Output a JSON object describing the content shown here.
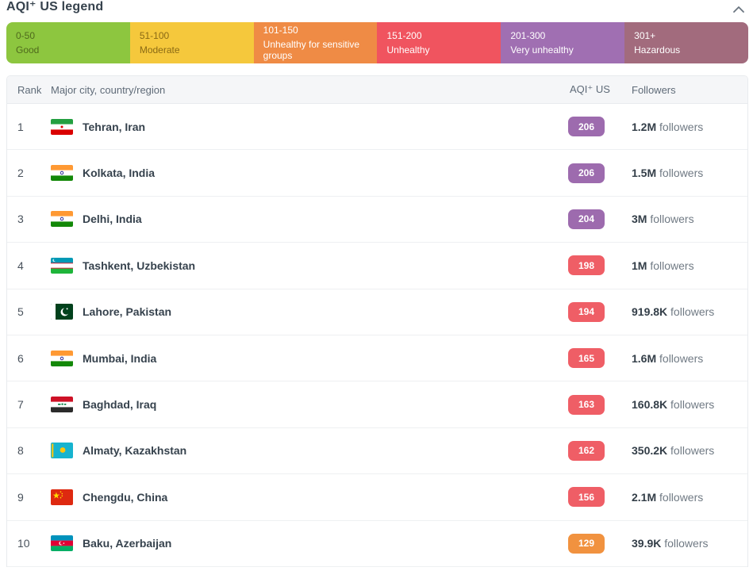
{
  "legend": {
    "title": "AQI⁺ US legend",
    "collapse_icon": "chevron-up",
    "collapse_icon_color": "#6a7580",
    "segments": [
      {
        "range": "0-50",
        "label": "Good",
        "bg": "#8dc63f",
        "fg": "#4f6a1d"
      },
      {
        "range": "51-100",
        "label": "Moderate",
        "bg": "#f5c83c",
        "fg": "#8a6a15"
      },
      {
        "range": "101-150",
        "label": "Unhealthy for sensitive groups",
        "bg": "#ef8b45",
        "fg": "#ffffff"
      },
      {
        "range": "151-200",
        "label": "Unhealthy",
        "bg": "#f0545f",
        "fg": "#ffffff"
      },
      {
        "range": "201-300",
        "label": "Very unhealthy",
        "bg": "#a06fb2",
        "fg": "#ffffff"
      },
      {
        "range": "301+",
        "label": "Hazardous",
        "bg": "#a26b7d",
        "fg": "#ffffff"
      }
    ]
  },
  "table": {
    "headers": {
      "rank": "Rank",
      "city": "Major city, country/region",
      "aqi": "AQI⁺ US",
      "followers": "Followers"
    },
    "badge_colors": {
      "very_unhealthy": "#9d6bae",
      "unhealthy": "#ef5e66",
      "unhealthy_sensitive": "#f1923f"
    },
    "rows": [
      {
        "rank": "1",
        "flag": "iran",
        "city": "Tehran, Iran",
        "aqi": "206",
        "aqi_color": "#9d6bae",
        "followers_count": "1.2M",
        "followers_suffix": "followers"
      },
      {
        "rank": "2",
        "flag": "india",
        "city": "Kolkata, India",
        "aqi": "206",
        "aqi_color": "#9d6bae",
        "followers_count": "1.5M",
        "followers_suffix": "followers"
      },
      {
        "rank": "3",
        "flag": "india",
        "city": "Delhi, India",
        "aqi": "204",
        "aqi_color": "#9d6bae",
        "followers_count": "3M",
        "followers_suffix": "followers"
      },
      {
        "rank": "4",
        "flag": "uzbekistan",
        "city": "Tashkent, Uzbekistan",
        "aqi": "198",
        "aqi_color": "#ef5e66",
        "followers_count": "1M",
        "followers_suffix": "followers"
      },
      {
        "rank": "5",
        "flag": "pakistan",
        "city": "Lahore, Pakistan",
        "aqi": "194",
        "aqi_color": "#ef5e66",
        "followers_count": "919.8K",
        "followers_suffix": "followers"
      },
      {
        "rank": "6",
        "flag": "india",
        "city": "Mumbai, India",
        "aqi": "165",
        "aqi_color": "#ef5e66",
        "followers_count": "1.6M",
        "followers_suffix": "followers"
      },
      {
        "rank": "7",
        "flag": "iraq",
        "city": "Baghdad, Iraq",
        "aqi": "163",
        "aqi_color": "#ef5e66",
        "followers_count": "160.8K",
        "followers_suffix": "followers"
      },
      {
        "rank": "8",
        "flag": "kazakhstan",
        "city": "Almaty, Kazakhstan",
        "aqi": "162",
        "aqi_color": "#ef5e66",
        "followers_count": "350.2K",
        "followers_suffix": "followers"
      },
      {
        "rank": "9",
        "flag": "china",
        "city": "Chengdu, China",
        "aqi": "156",
        "aqi_color": "#ef5e66",
        "followers_count": "2.1M",
        "followers_suffix": "followers"
      },
      {
        "rank": "10",
        "flag": "azerbaijan",
        "city": "Baku, Azerbaijan",
        "aqi": "129",
        "aqi_color": "#f1923f",
        "followers_count": "39.9K",
        "followers_suffix": "followers"
      }
    ]
  }
}
